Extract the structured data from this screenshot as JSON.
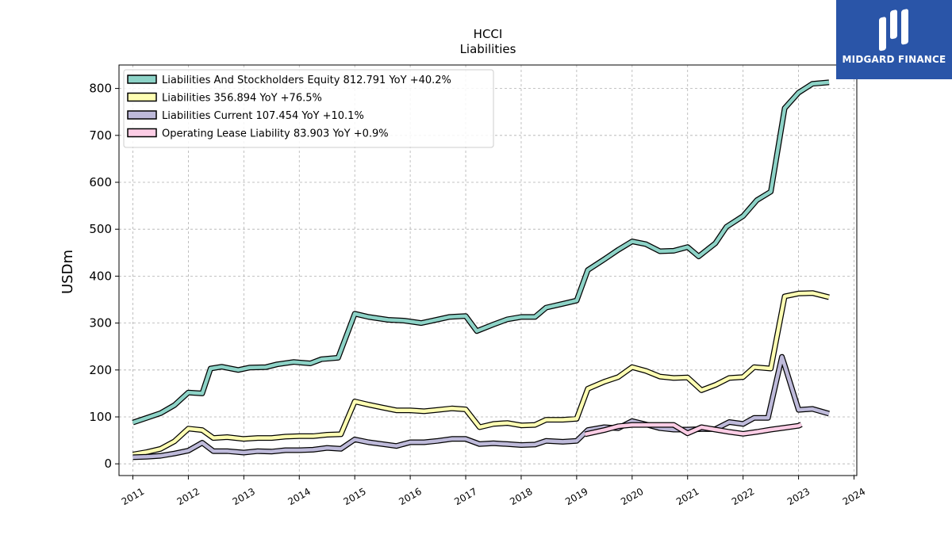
{
  "chart_data": {
    "type": "line",
    "title": "HCCI",
    "subtitle": "Liabilities",
    "ylabel": "USDm",
    "xlabel": "",
    "ylim": [
      -25,
      850
    ],
    "xlim": [
      2010.75,
      2024.05
    ],
    "yticks": [
      0,
      100,
      200,
      300,
      400,
      500,
      600,
      700,
      800
    ],
    "xticks": [
      2011,
      2012,
      2013,
      2014,
      2015,
      2016,
      2017,
      2018,
      2019,
      2020,
      2021,
      2022,
      2023,
      2024
    ],
    "grid": true,
    "legend_position": "top-left",
    "series": [
      {
        "name": "Liabilities And Stockholders Equity",
        "legend": "Liabilities And Stockholders Equity  812.791 YoY +40.2%",
        "color": "#8dd3c7",
        "points": [
          [
            2011.0,
            88
          ],
          [
            2011.25,
            98
          ],
          [
            2011.5,
            108
          ],
          [
            2011.75,
            125
          ],
          [
            2012.0,
            152
          ],
          [
            2012.25,
            150
          ],
          [
            2012.4,
            203
          ],
          [
            2012.6,
            207
          ],
          [
            2012.9,
            200
          ],
          [
            2013.1,
            205
          ],
          [
            2013.4,
            206
          ],
          [
            2013.6,
            212
          ],
          [
            2013.9,
            217
          ],
          [
            2014.2,
            214
          ],
          [
            2014.4,
            223
          ],
          [
            2014.7,
            226
          ],
          [
            2015.0,
            320
          ],
          [
            2015.25,
            313
          ],
          [
            2015.6,
            307
          ],
          [
            2015.9,
            305
          ],
          [
            2016.2,
            300
          ],
          [
            2016.4,
            305
          ],
          [
            2016.7,
            313
          ],
          [
            2017.0,
            315
          ],
          [
            2017.2,
            283
          ],
          [
            2017.5,
            297
          ],
          [
            2017.75,
            308
          ],
          [
            2018.0,
            313
          ],
          [
            2018.25,
            313
          ],
          [
            2018.45,
            333
          ],
          [
            2018.75,
            341
          ],
          [
            2019.0,
            348
          ],
          [
            2019.2,
            413
          ],
          [
            2019.5,
            436
          ],
          [
            2019.75,
            456
          ],
          [
            2020.0,
            474
          ],
          [
            2020.25,
            468
          ],
          [
            2020.5,
            453
          ],
          [
            2020.75,
            454
          ],
          [
            2021.0,
            462
          ],
          [
            2021.2,
            442
          ],
          [
            2021.5,
            470
          ],
          [
            2021.7,
            505
          ],
          [
            2022.0,
            528
          ],
          [
            2022.25,
            562
          ],
          [
            2022.5,
            580
          ],
          [
            2022.75,
            758
          ],
          [
            2023.0,
            791
          ],
          [
            2023.25,
            810
          ],
          [
            2023.55,
            813
          ]
        ]
      },
      {
        "name": "Liabilities",
        "legend": "Liabilities  356.894 YoY +76.5%",
        "color": "#ffffb3",
        "points": [
          [
            2011.0,
            20
          ],
          [
            2011.25,
            25
          ],
          [
            2011.5,
            32
          ],
          [
            2011.75,
            48
          ],
          [
            2012.0,
            75
          ],
          [
            2012.25,
            72
          ],
          [
            2012.45,
            55
          ],
          [
            2012.7,
            57
          ],
          [
            2013.0,
            53
          ],
          [
            2013.25,
            55
          ],
          [
            2013.5,
            55
          ],
          [
            2013.75,
            58
          ],
          [
            2014.0,
            59
          ],
          [
            2014.25,
            59
          ],
          [
            2014.5,
            62
          ],
          [
            2014.75,
            63
          ],
          [
            2015.0,
            133
          ],
          [
            2015.25,
            126
          ],
          [
            2015.5,
            120
          ],
          [
            2015.75,
            114
          ],
          [
            2016.0,
            114
          ],
          [
            2016.25,
            112
          ],
          [
            2016.5,
            115
          ],
          [
            2016.75,
            118
          ],
          [
            2017.0,
            116
          ],
          [
            2017.25,
            78
          ],
          [
            2017.5,
            85
          ],
          [
            2017.75,
            87
          ],
          [
            2018.0,
            82
          ],
          [
            2018.25,
            83
          ],
          [
            2018.45,
            94
          ],
          [
            2018.75,
            94
          ],
          [
            2019.0,
            96
          ],
          [
            2019.2,
            160
          ],
          [
            2019.5,
            175
          ],
          [
            2019.75,
            185
          ],
          [
            2020.0,
            206
          ],
          [
            2020.25,
            198
          ],
          [
            2020.5,
            186
          ],
          [
            2020.75,
            183
          ],
          [
            2021.0,
            184
          ],
          [
            2021.25,
            157
          ],
          [
            2021.5,
            168
          ],
          [
            2021.75,
            183
          ],
          [
            2022.0,
            185
          ],
          [
            2022.2,
            206
          ],
          [
            2022.5,
            203
          ],
          [
            2022.75,
            357
          ],
          [
            2023.0,
            363
          ],
          [
            2023.25,
            364
          ],
          [
            2023.55,
            355
          ]
        ]
      },
      {
        "name": "Liabilities Current",
        "legend": "Liabilities Current  107.454 YoY +10.1%",
        "color": "#bebada",
        "points": [
          [
            2011.0,
            14
          ],
          [
            2011.25,
            15
          ],
          [
            2011.5,
            17
          ],
          [
            2011.75,
            22
          ],
          [
            2012.0,
            28
          ],
          [
            2012.25,
            45
          ],
          [
            2012.45,
            27
          ],
          [
            2012.7,
            27
          ],
          [
            2013.0,
            24
          ],
          [
            2013.25,
            27
          ],
          [
            2013.5,
            26
          ],
          [
            2013.75,
            29
          ],
          [
            2014.0,
            29
          ],
          [
            2014.25,
            30
          ],
          [
            2014.5,
            34
          ],
          [
            2014.75,
            32
          ],
          [
            2015.0,
            52
          ],
          [
            2015.25,
            46
          ],
          [
            2015.5,
            42
          ],
          [
            2015.75,
            38
          ],
          [
            2016.0,
            46
          ],
          [
            2016.25,
            46
          ],
          [
            2016.5,
            49
          ],
          [
            2016.75,
            53
          ],
          [
            2017.0,
            53
          ],
          [
            2017.25,
            42
          ],
          [
            2017.5,
            44
          ],
          [
            2017.75,
            42
          ],
          [
            2018.0,
            40
          ],
          [
            2018.25,
            41
          ],
          [
            2018.45,
            49
          ],
          [
            2018.75,
            47
          ],
          [
            2019.0,
            49
          ],
          [
            2019.2,
            72
          ],
          [
            2019.5,
            78
          ],
          [
            2019.75,
            76
          ],
          [
            2020.0,
            91
          ],
          [
            2020.25,
            84
          ],
          [
            2020.5,
            76
          ],
          [
            2020.75,
            73
          ],
          [
            2021.0,
            73
          ],
          [
            2021.25,
            74
          ],
          [
            2021.5,
            74
          ],
          [
            2021.75,
            89
          ],
          [
            2022.0,
            85
          ],
          [
            2022.2,
            98
          ],
          [
            2022.45,
            98
          ],
          [
            2022.7,
            228
          ],
          [
            2022.75,
            210
          ],
          [
            2023.0,
            115
          ],
          [
            2023.25,
            117
          ],
          [
            2023.55,
            107
          ]
        ]
      },
      {
        "name": "Operating Lease Liability",
        "legend": "Operating Lease Liability  83.903 YoY +0.9%",
        "color": "#fccde5",
        "points": [
          [
            2019.15,
            63
          ],
          [
            2019.5,
            72
          ],
          [
            2019.75,
            80
          ],
          [
            2020.0,
            83
          ],
          [
            2020.25,
            83
          ],
          [
            2020.5,
            83
          ],
          [
            2020.75,
            83
          ],
          [
            2021.0,
            65
          ],
          [
            2021.25,
            78
          ],
          [
            2021.5,
            73
          ],
          [
            2021.75,
            68
          ],
          [
            2022.0,
            64
          ],
          [
            2022.25,
            68
          ],
          [
            2022.5,
            73
          ],
          [
            2022.75,
            77
          ],
          [
            2023.0,
            81
          ],
          [
            2023.05,
            84
          ]
        ]
      }
    ]
  },
  "logo": {
    "text": "MIDGARD FINANCE",
    "color": "#2a55a8"
  }
}
